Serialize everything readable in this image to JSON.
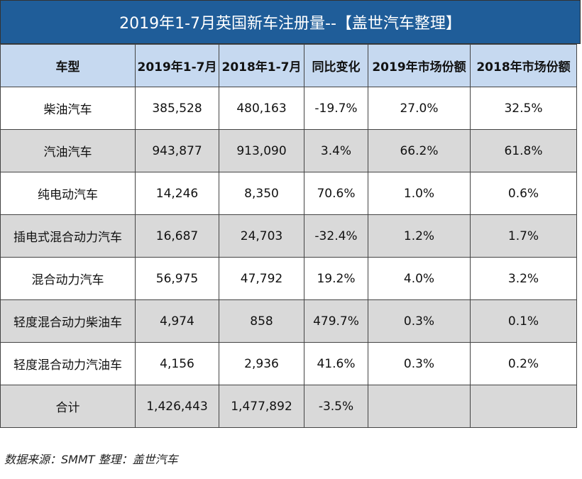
{
  "header": {
    "title": "2019年1-7月英国新车注册量--【盖世汽车整理】"
  },
  "table": {
    "columns": [
      "车型",
      "2019年1-7月",
      "2018年1-7月",
      "同比变化",
      "2019年市场份额",
      "2018年市场份额"
    ],
    "rows": [
      [
        "柴油汽车",
        "385,528",
        "480,163",
        "-19.7%",
        "27.0%",
        "32.5%"
      ],
      [
        "汽油汽车",
        "943,877",
        "913,090",
        "3.4%",
        "66.2%",
        "61.8%"
      ],
      [
        "纯电动汽车",
        "14,246",
        "8,350",
        "70.6%",
        "1.0%",
        "0.6%"
      ],
      [
        "插电式混合动力汽车",
        "16,687",
        "24,703",
        "-32.4%",
        "1.2%",
        "1.7%"
      ],
      [
        "混合动力汽车",
        "56,975",
        "47,792",
        "19.2%",
        "4.0%",
        "3.2%"
      ],
      [
        "轻度混合动力柴油车",
        "4,974",
        "858",
        "479.7%",
        "0.3%",
        "0.1%"
      ],
      [
        "轻度混合动力汽油车",
        "4,156",
        "2,936",
        "41.6%",
        "0.3%",
        "0.2%"
      ],
      [
        "合计",
        "1,426,443",
        "1,477,892",
        "-3.5%",
        "",
        ""
      ]
    ]
  },
  "footer": {
    "source": "数据来源：SMMT 整理：盖世汽车"
  }
}
